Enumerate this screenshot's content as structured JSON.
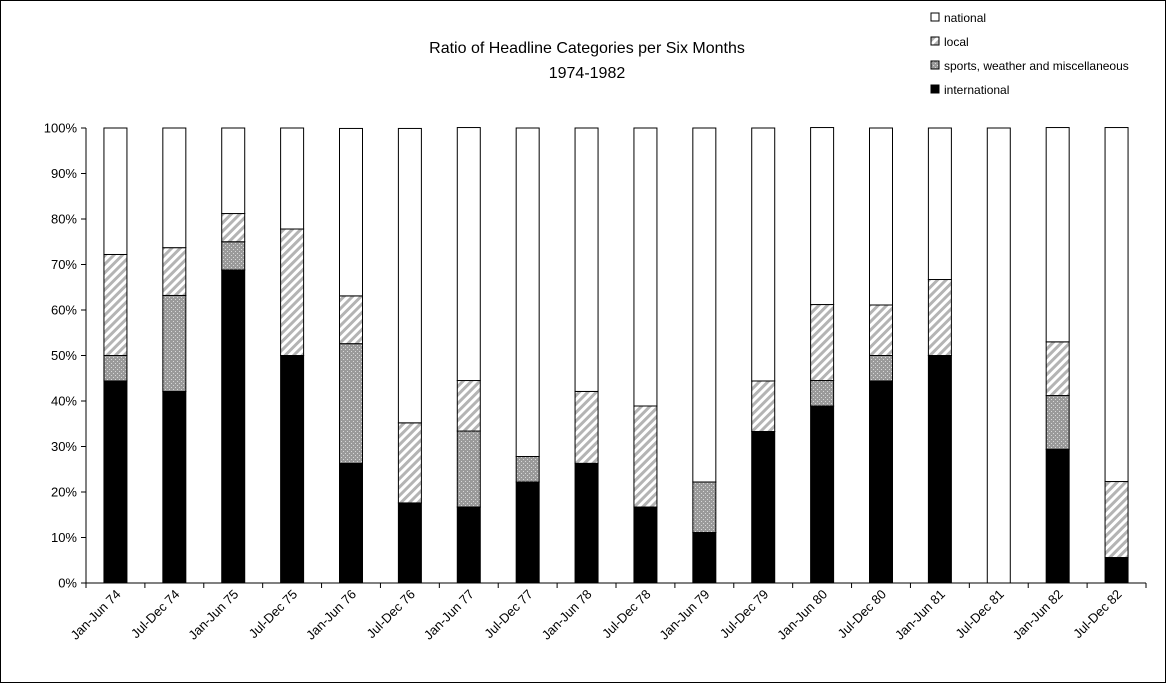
{
  "chart_data": {
    "type": "bar",
    "stacked": true,
    "percent": true,
    "title": "Ratio of Headline Categories per Six Months",
    "subtitle": "1974-1982",
    "xlabel": "",
    "ylabel": "",
    "ylim": [
      0,
      100
    ],
    "yticks": [
      "0%",
      "10%",
      "20%",
      "30%",
      "40%",
      "50%",
      "60%",
      "70%",
      "80%",
      "90%",
      "100%"
    ],
    "grid": false,
    "legend_position": "top-right",
    "categories": [
      "Jan-Jun 74",
      "Jul-Dec 74",
      "Jan-Jun 75",
      "Jul-Dec 75",
      "Jan-Jun 76",
      "Jul-Dec 76",
      "Jan-Jun 77",
      "Jul-Dec 77",
      "Jan-Jun 78",
      "Jul-Dec 78",
      "Jan-Jun 79",
      "Jul-Dec 79",
      "Jan-Jun 80",
      "Jul-Dec 80",
      "Jan-Jun 81",
      "Jul-Dec 81",
      "Jan-Jun 82",
      "Jul-Dec 82"
    ],
    "series": [
      {
        "name": "international",
        "color": "#000000",
        "fill": "solid",
        "values": [
          44.4,
          42.1,
          68.8,
          50.0,
          26.3,
          17.6,
          16.7,
          22.2,
          26.3,
          16.7,
          11.1,
          33.3,
          38.9,
          44.4,
          50.0,
          0,
          29.4,
          5.6
        ]
      },
      {
        "name": "sports, weather and miscellaneous",
        "color": "#999999",
        "fill": "dotted",
        "values": [
          5.6,
          21.1,
          6.2,
          0,
          26.3,
          0,
          16.7,
          5.6,
          0,
          0,
          11.1,
          0,
          5.6,
          5.6,
          0,
          0,
          11.8,
          0
        ]
      },
      {
        "name": "local",
        "color": "#bbbbbb",
        "fill": "diagonal",
        "values": [
          22.2,
          10.5,
          6.2,
          27.8,
          10.5,
          17.6,
          11.1,
          0,
          15.8,
          22.2,
          0,
          11.1,
          16.7,
          11.1,
          16.7,
          0,
          11.8,
          16.7
        ]
      },
      {
        "name": "national",
        "color": "#ffffff",
        "fill": "empty",
        "values": [
          27.8,
          26.3,
          18.8,
          22.2,
          36.8,
          64.7,
          55.6,
          72.2,
          57.9,
          61.1,
          77.8,
          55.6,
          38.9,
          38.9,
          33.3,
          100,
          47.1,
          77.8
        ]
      }
    ],
    "legend_order": [
      "national",
      "local",
      "sports, weather and miscellaneous",
      "international"
    ]
  }
}
